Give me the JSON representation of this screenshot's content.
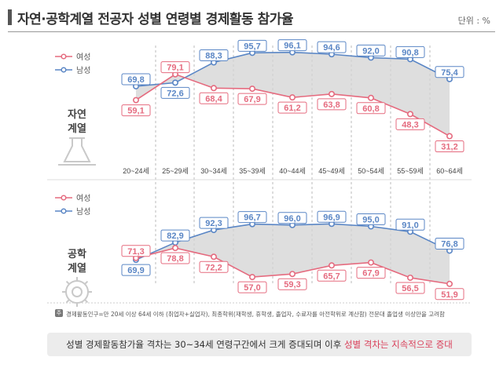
{
  "title": "자연·공학계열 전공자 성별 연령별 경제활동 참가율",
  "unit": "단위 : %",
  "footnote_mark": "주",
  "footnote": "경제활동인구=만 20세 이상 64세 이하 (취업자+실업자), 최종학위(재학생, 휴학생, 졸업자, 수료자를 아전학위로 계산함) 전문대 졸업생 이상만을 고려함",
  "banner": {
    "before": "성별 경제활동참가율 격차는 30~34세 연령구간에서 크게 증대되며 이후 ",
    "highlight": "성별 격차는 지속적으로 증대"
  },
  "colors": {
    "female": "#e56b7f",
    "male": "#5a86c5",
    "gap": "#d3d3d3"
  },
  "chart_data": [
    {
      "type": "line",
      "panel_label": "자연\n계열",
      "icon": "flask-icon",
      "categories": [
        "20~24세",
        "25~29세",
        "30~34세",
        "35~39세",
        "40~44세",
        "45~49세",
        "50~54세",
        "55~59세",
        "60~64세"
      ],
      "series": [
        {
          "name": "여성",
          "values": [
            59.1,
            79.1,
            68.4,
            67.9,
            61.2,
            63.8,
            60.8,
            48.3,
            31.2
          ]
        },
        {
          "name": "남성",
          "values": [
            69.8,
            72.6,
            88.3,
            95.7,
            96.1,
            94.6,
            92.0,
            90.8,
            75.4
          ]
        }
      ],
      "legend_position": "top-left"
    },
    {
      "type": "line",
      "panel_label": "공학\n계열",
      "icon": "gear-icon",
      "categories": [
        "20~24세",
        "25~29세",
        "30~34세",
        "35~39세",
        "40~44세",
        "45~49세",
        "50~54세",
        "55~59세",
        "60~64세"
      ],
      "series": [
        {
          "name": "여성",
          "values": [
            71.3,
            78.8,
            72.2,
            57.0,
            59.3,
            65.7,
            67.9,
            56.5,
            51.9
          ]
        },
        {
          "name": "남성",
          "values": [
            69.9,
            82.9,
            92.3,
            96.7,
            96.0,
            96.9,
            95.0,
            91.0,
            76.8
          ]
        }
      ],
      "legend_position": "top-left"
    }
  ]
}
